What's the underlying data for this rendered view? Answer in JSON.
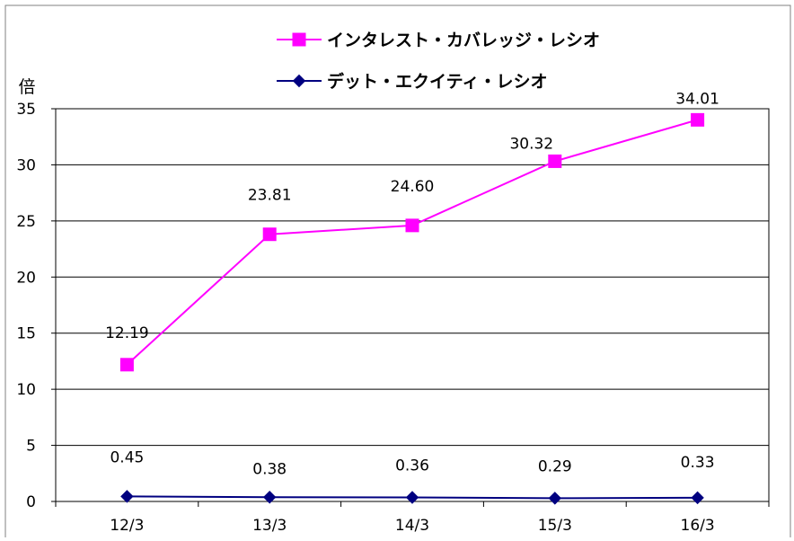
{
  "chart_data": {
    "type": "line",
    "categories": [
      "12/3",
      "13/3",
      "14/3",
      "15/3",
      "16/3"
    ],
    "series": [
      {
        "name": "インタレスト・カバレッジ・レシオ",
        "values": [
          12.19,
          23.81,
          24.6,
          30.32,
          34.01
        ],
        "labels": [
          "12.19",
          "23.81",
          "24.60",
          "30.32",
          "34.01"
        ],
        "color": "#ff00ff",
        "marker": "square"
      },
      {
        "name": "デット・エクイティ・レシオ",
        "values": [
          0.45,
          0.38,
          0.36,
          0.29,
          0.33
        ],
        "labels": [
          "0.45",
          "0.38",
          "0.36",
          "0.29",
          "0.33"
        ],
        "color": "#000080",
        "marker": "diamond"
      }
    ],
    "ylabel": "倍",
    "ylim": [
      0,
      35
    ],
    "yticks": [
      0,
      5,
      10,
      15,
      20,
      25,
      30,
      35
    ],
    "grid": true,
    "legend_position": "top"
  }
}
